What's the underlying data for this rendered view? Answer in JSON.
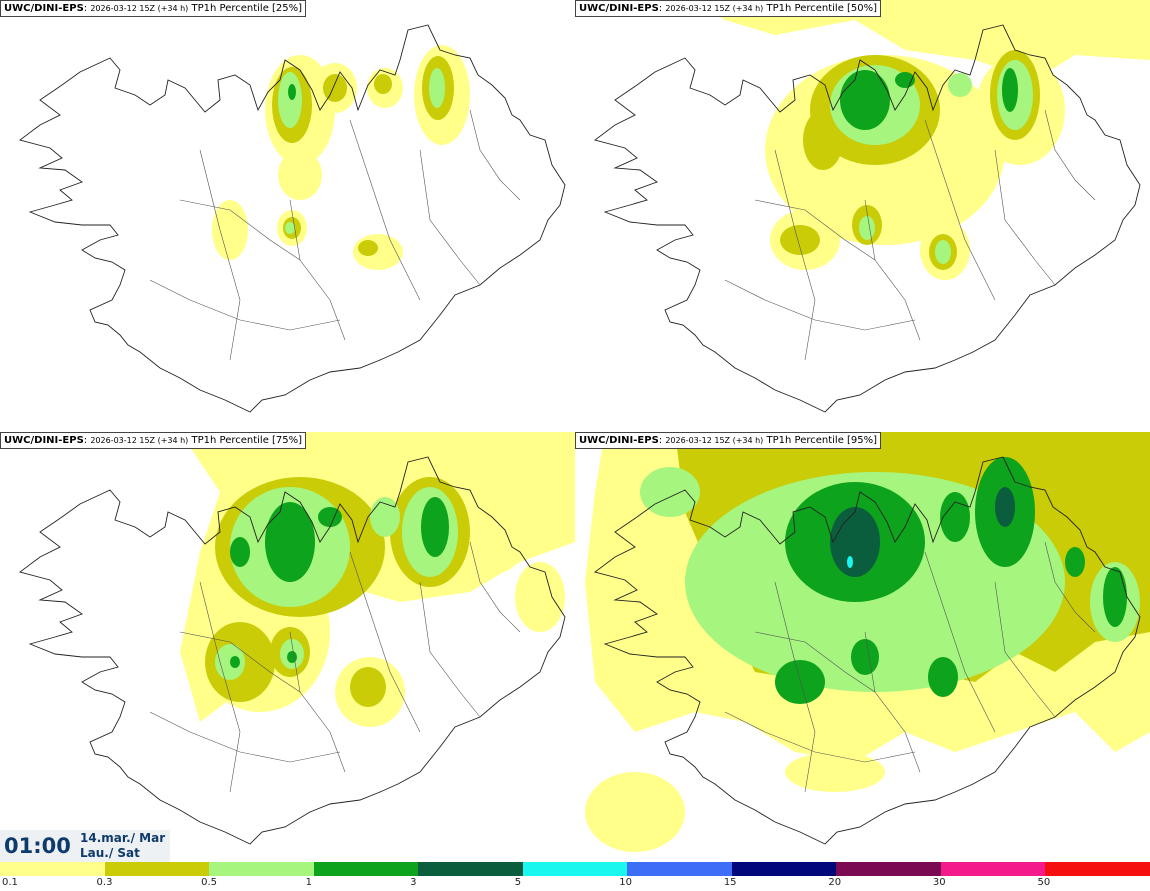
{
  "panels": [
    {
      "model": "UWC/DINI-EPS",
      "run": "2026-03-12 15Z (+34 h)",
      "product": "TP1h Percentile [25%]",
      "percentile": 25
    },
    {
      "model": "UWC/DINI-EPS",
      "run": "2026-03-12 15Z (+34 h)",
      "product": "TP1h Percentile [50%]",
      "percentile": 50
    },
    {
      "model": "UWC/DINI-EPS",
      "run": "2026-03-12 15Z (+34 h)",
      "product": "TP1h Percentile [75%]",
      "percentile": 75
    },
    {
      "model": "UWC/DINI-EPS",
      "run": "2026-03-12 15Z (+34 h)",
      "product": "TP1h Percentile [95%]",
      "percentile": 95
    }
  ],
  "valid_time": {
    "time": "01:00",
    "date_line1": "14.mar./ Mar",
    "date_line2": "Lau./ Sat"
  },
  "colorbar": {
    "colors": [
      "#ffff8a",
      "#c9cc06",
      "#a6f57f",
      "#0da31c",
      "#0b5e3d",
      "#19f7ef",
      "#3d6ef5",
      "#02087a",
      "#7a0a52",
      "#f51a8c",
      "#f50f0f"
    ],
    "ticks": [
      "0.1",
      "0.3",
      "0.5",
      "1",
      "3",
      "5",
      "10",
      "15",
      "20",
      "30",
      "50"
    ]
  }
}
